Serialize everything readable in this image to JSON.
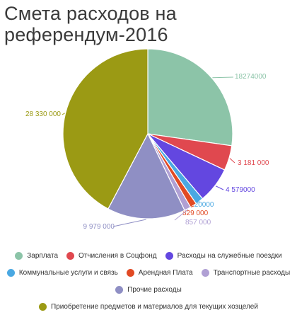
{
  "chart_data": {
    "type": "pie",
    "title": "Смета расходов на референдум-2016",
    "slices": [
      {
        "name": "Зарплата",
        "value": 18274000,
        "label": "18274000",
        "color": "#8cc4a8"
      },
      {
        "name": "Отчисления в Соцфонд",
        "value": 3181000,
        "label": "3 181 000",
        "color": "#e0484f"
      },
      {
        "name": "Расходы на служебные поездки",
        "value": 4579000,
        "label": "4 579000",
        "color": "#6347e0"
      },
      {
        "name": "Коммунальные услуги и связь",
        "value": 1020000,
        "label": "1 0 20000",
        "color": "#4aa8e2"
      },
      {
        "name": "Арендная Плата",
        "value": 829000,
        "label": "829 000",
        "color": "#e14a24"
      },
      {
        "name": "Транспортные расходы",
        "value": 857000,
        "label": "857 000",
        "color": "#b0a0d4"
      },
      {
        "name": "Прочие расходы",
        "value": 9979000,
        "label": "9 979 000",
        "color": "#8f8fc4"
      },
      {
        "name": "Приобретение предметов и материалов для текущих хозцелей",
        "value": 28330000,
        "label": "28 330 000",
        "color": "#9b9a14"
      }
    ],
    "legend_position": "bottom"
  }
}
